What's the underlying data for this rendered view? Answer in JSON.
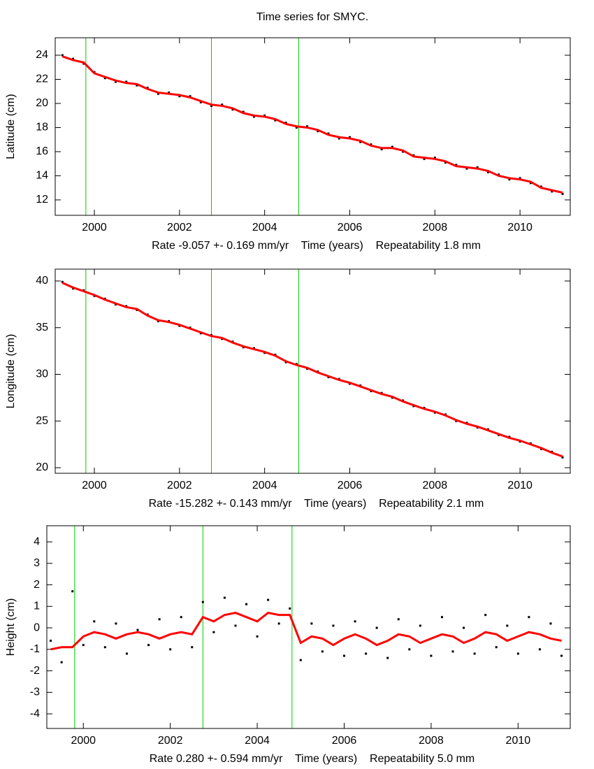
{
  "chart_data": [
    {
      "type": "scatter",
      "title": "Time series for SMYC.",
      "ylabel": "Latitude (cm)",
      "xlabel": "Rate -9.057 +- 0.169 mm/yr    Time (years)    Repeatability 1.8 mm",
      "x": [
        1999.25,
        1999.5,
        1999.75,
        2000,
        2000.25,
        2000.5,
        2000.75,
        2001,
        2001.25,
        2001.5,
        2001.75,
        2002,
        2002.25,
        2002.5,
        2002.75,
        2003,
        2003.25,
        2003.5,
        2003.75,
        2004,
        2004.25,
        2004.5,
        2004.75,
        2005,
        2005.25,
        2005.5,
        2005.75,
        2006,
        2006.25,
        2006.5,
        2006.75,
        2007,
        2007.25,
        2007.5,
        2007.75,
        2008,
        2008.25,
        2008.5,
        2008.75,
        2009,
        2009.25,
        2009.5,
        2009.75,
        2010,
        2010.25,
        2010.5,
        2010.75,
        2011
      ],
      "series": [
        {
          "style": "points",
          "color": "#000000",
          "values": [
            24.0,
            23.7,
            23.3,
            22.6,
            22.1,
            21.8,
            21.8,
            21.5,
            21.3,
            20.8,
            20.9,
            20.6,
            20.6,
            20.1,
            19.8,
            19.9,
            19.5,
            19.3,
            18.9,
            19.0,
            18.6,
            18.4,
            18.0,
            18.1,
            17.7,
            17.5,
            17.1,
            17.2,
            16.8,
            16.6,
            16.2,
            16.4,
            16.0,
            15.7,
            15.4,
            15.5,
            15.1,
            14.9,
            14.6,
            14.7,
            14.3,
            14.1,
            13.7,
            13.8,
            13.4,
            13.1,
            12.7,
            12.5
          ]
        },
        {
          "style": "line",
          "color": "#ff0000",
          "values": [
            23.9,
            23.6,
            23.4,
            22.5,
            22.2,
            21.9,
            21.7,
            21.6,
            21.2,
            20.9,
            20.8,
            20.7,
            20.5,
            20.2,
            19.9,
            19.8,
            19.6,
            19.2,
            19.0,
            18.9,
            18.7,
            18.3,
            18.1,
            18.0,
            17.8,
            17.4,
            17.2,
            17.1,
            16.9,
            16.5,
            16.3,
            16.3,
            16.1,
            15.6,
            15.5,
            15.4,
            15.2,
            14.8,
            14.7,
            14.6,
            14.4,
            14.0,
            13.8,
            13.7,
            13.5,
            13.0,
            12.8,
            12.6
          ]
        }
      ],
      "breaks": [
        1999.8,
        2002.75,
        2004.8
      ],
      "breaks_color": "#00cc00",
      "xlim": [
        1999.08,
        2011.18
      ],
      "ylim": [
        10.72,
        25.45
      ],
      "xticks": [
        2000,
        2002,
        2004,
        2006,
        2008,
        2010
      ],
      "yticks": [
        12,
        14,
        16,
        18,
        20,
        22,
        24
      ]
    },
    {
      "type": "scatter",
      "ylabel": "Longitude (cm)",
      "xlabel": "Rate -15.282 +- 0.143 mm/yr    Time (years)    Repeatability 2.1 mm",
      "x": [
        1999.25,
        1999.5,
        1999.75,
        2000,
        2000.25,
        2000.5,
        2000.75,
        2001,
        2001.25,
        2001.5,
        2001.75,
        2002,
        2002.25,
        2002.5,
        2002.75,
        2003,
        2003.25,
        2003.5,
        2003.75,
        2004,
        2004.25,
        2004.5,
        2004.75,
        2005,
        2005.25,
        2005.5,
        2005.75,
        2006,
        2006.25,
        2006.5,
        2006.75,
        2007,
        2007.25,
        2007.5,
        2007.75,
        2008,
        2008.25,
        2008.5,
        2008.75,
        2009,
        2009.25,
        2009.5,
        2009.75,
        2010,
        2010.25,
        2010.5,
        2010.75,
        2011
      ],
      "series": [
        {
          "style": "points",
          "color": "#000000",
          "values": [
            39.9,
            39.2,
            39.0,
            38.4,
            38.1,
            37.5,
            37.3,
            36.9,
            36.4,
            35.7,
            35.7,
            35.2,
            35.0,
            34.4,
            34.2,
            33.8,
            33.5,
            32.9,
            32.8,
            32.3,
            32.1,
            31.3,
            31.1,
            30.6,
            30.3,
            29.7,
            29.5,
            29.0,
            28.8,
            28.2,
            28.0,
            27.5,
            27.2,
            26.6,
            26.4,
            25.9,
            25.7,
            25.0,
            24.8,
            24.3,
            24.1,
            23.5,
            23.3,
            22.8,
            22.6,
            22.0,
            21.7,
            21.1
          ]
        },
        {
          "style": "line",
          "color": "#ff0000",
          "values": [
            39.8,
            39.3,
            38.9,
            38.5,
            38.0,
            37.6,
            37.2,
            37.0,
            36.3,
            35.8,
            35.6,
            35.3,
            34.9,
            34.5,
            34.1,
            33.9,
            33.4,
            33.0,
            32.7,
            32.4,
            32.0,
            31.4,
            31.0,
            30.7,
            30.2,
            29.8,
            29.4,
            29.1,
            28.7,
            28.3,
            27.9,
            27.6,
            27.1,
            26.7,
            26.3,
            26.0,
            25.6,
            25.1,
            24.7,
            24.4,
            24.0,
            23.6,
            23.2,
            22.9,
            22.5,
            22.1,
            21.6,
            21.2
          ]
        }
      ],
      "breaks": [
        1999.8,
        2002.75,
        2004.8
      ],
      "breaks_color": "#00cc00",
      "xlim": [
        1999.08,
        2011.18
      ],
      "ylim": [
        19.4,
        41.27
      ],
      "xticks": [
        2000,
        2002,
        2004,
        2006,
        2008,
        2010
      ],
      "yticks": [
        20,
        25,
        30,
        35,
        40
      ]
    },
    {
      "type": "scatter",
      "ylabel": "Height (cm)",
      "xlabel": "Rate 0.280 +- 0.594 mm/yr    Time (years)    Repeatability 5.0 mm",
      "x": [
        1999.25,
        1999.5,
        1999.75,
        2000,
        2000.25,
        2000.5,
        2000.75,
        2001,
        2001.25,
        2001.5,
        2001.75,
        2002,
        2002.25,
        2002.5,
        2002.75,
        2003,
        2003.25,
        2003.5,
        2003.75,
        2004,
        2004.25,
        2004.5,
        2004.75,
        2005,
        2005.25,
        2005.5,
        2005.75,
        2006,
        2006.25,
        2006.5,
        2006.75,
        2007,
        2007.25,
        2007.5,
        2007.75,
        2008,
        2008.25,
        2008.5,
        2008.75,
        2009,
        2009.25,
        2009.5,
        2009.75,
        2010,
        2010.25,
        2010.5,
        2010.75,
        2011
      ],
      "series": [
        {
          "style": "points",
          "color": "#000000",
          "values": [
            -0.6,
            -1.6,
            1.7,
            -0.8,
            0.3,
            -0.9,
            0.2,
            -1.2,
            -0.1,
            -0.8,
            0.4,
            -1.0,
            0.5,
            -0.9,
            1.2,
            -0.2,
            1.4,
            0.1,
            1.1,
            -0.4,
            1.3,
            0.2,
            0.9,
            -1.5,
            0.2,
            -1.1,
            0.1,
            -1.3,
            0.3,
            -1.2,
            0.0,
            -1.4,
            0.4,
            -1.0,
            0.1,
            -1.3,
            0.5,
            -1.1,
            0.0,
            -1.2,
            0.6,
            -0.9,
            0.1,
            -1.2,
            0.5,
            -1.0,
            0.2,
            -1.3
          ]
        },
        {
          "style": "line",
          "color": "#ff0000",
          "values": [
            -1.0,
            -0.9,
            -0.9,
            -0.4,
            -0.2,
            -0.3,
            -0.5,
            -0.3,
            -0.2,
            -0.3,
            -0.5,
            -0.3,
            -0.2,
            -0.3,
            0.5,
            0.3,
            0.6,
            0.7,
            0.5,
            0.3,
            0.7,
            0.6,
            0.6,
            -0.7,
            -0.4,
            -0.5,
            -0.8,
            -0.5,
            -0.3,
            -0.5,
            -0.8,
            -0.6,
            -0.3,
            -0.4,
            -0.7,
            -0.5,
            -0.3,
            -0.4,
            -0.7,
            -0.5,
            -0.2,
            -0.3,
            -0.6,
            -0.4,
            -0.2,
            -0.3,
            -0.5,
            -0.6
          ]
        }
      ],
      "breaks": [
        1999.8,
        2002.75,
        2004.8
      ],
      "breaks_color": "#00cc00",
      "xlim": [
        1999.16,
        2011.2
      ],
      "ylim": [
        -4.68,
        4.75
      ],
      "xticks": [
        2000,
        2002,
        2004,
        2006,
        2008,
        2010
      ],
      "yticks": [
        -4,
        -3,
        -2,
        -1,
        0,
        1,
        2,
        3,
        4
      ]
    }
  ]
}
